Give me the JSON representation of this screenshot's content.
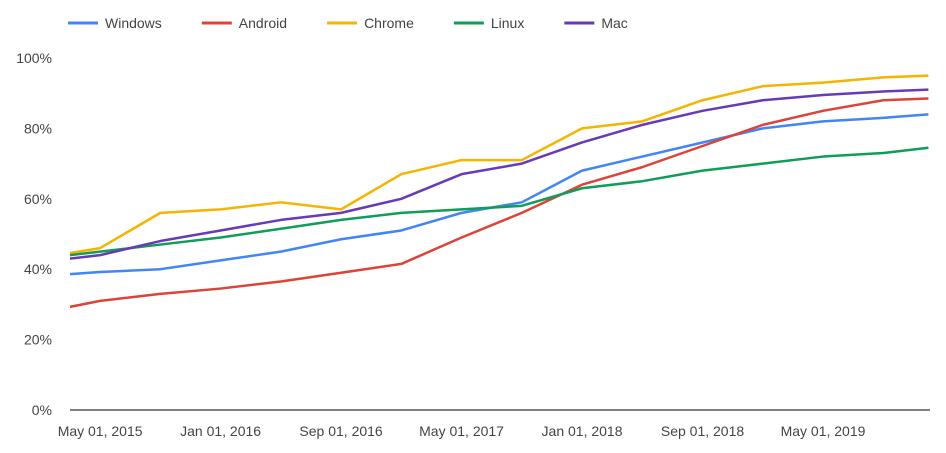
{
  "chart_data": {
    "type": "line",
    "title": "",
    "xlabel": "",
    "ylabel": "",
    "ylim": [
      0,
      100
    ],
    "yticks": [
      "0%",
      "20%",
      "40%",
      "60%",
      "80%",
      "100%"
    ],
    "xticks": [
      {
        "label": "May 01, 2015",
        "month": 2
      },
      {
        "label": "Jan 01, 2016",
        "month": 10
      },
      {
        "label": "Sep 01, 2016",
        "month": 18
      },
      {
        "label": "May 01, 2017",
        "month": 26
      },
      {
        "label": "Jan 01, 2018",
        "month": 34
      },
      {
        "label": "Sep 01, 2018",
        "month": 42
      },
      {
        "label": "May 01, 2019",
        "month": 50
      }
    ],
    "x_months_since_mar_2015": [
      0,
      2,
      6,
      10,
      14,
      18,
      22,
      26,
      30,
      34,
      38,
      42,
      46,
      50,
      54,
      57
    ],
    "legend_position": "top",
    "series": [
      {
        "name": "Windows",
        "color": "#4285f4",
        "values": [
          38.6,
          39.2,
          40,
          42.5,
          45,
          48.5,
          51,
          56,
          59,
          68,
          72,
          76,
          80,
          82,
          83,
          84
        ]
      },
      {
        "name": "Android",
        "color": "#db4437",
        "values": [
          29.3,
          31,
          33,
          34.5,
          36.5,
          39,
          41.5,
          49,
          56,
          64,
          69,
          75,
          81,
          85,
          88,
          88.5
        ]
      },
      {
        "name": "Chrome",
        "color": "#f4b400",
        "values": [
          44.6,
          46,
          56,
          57,
          59,
          57,
          67,
          71,
          71,
          80,
          82,
          88,
          92,
          93,
          94.5,
          95
        ]
      },
      {
        "name": "Linux",
        "color": "#0f9d58",
        "values": [
          44,
          45,
          47,
          49,
          51.5,
          54,
          56,
          57,
          58,
          63,
          65,
          68,
          70,
          72,
          73,
          74.5
        ]
      },
      {
        "name": "Mac",
        "color": "#673ab7",
        "values": [
          43,
          44,
          48,
          51,
          54,
          56,
          60,
          67,
          70,
          76,
          81,
          85,
          88,
          89.5,
          90.5,
          91
        ]
      }
    ]
  }
}
